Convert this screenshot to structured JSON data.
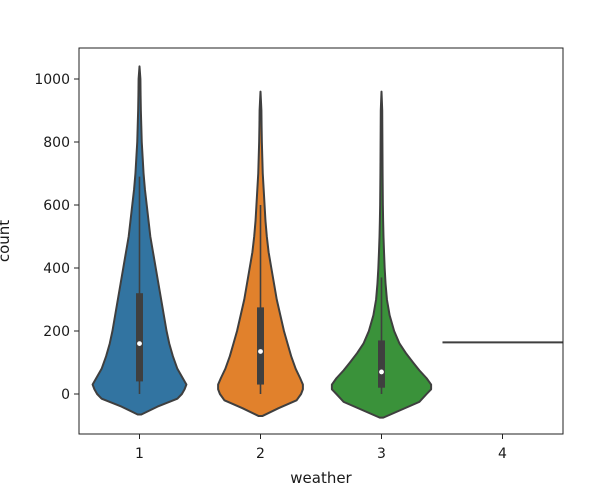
{
  "chart_data": {
    "type": "violin",
    "title": "",
    "xlabel": "weather",
    "ylabel": "count",
    "categories": [
      "1",
      "2",
      "3",
      "4"
    ],
    "ylim": [
      -130,
      1100
    ],
    "yticks": [
      0,
      200,
      400,
      600,
      800,
      1000
    ],
    "grid": false,
    "legend": "none",
    "colors": [
      "#3274a1",
      "#e1812c",
      "#3a923a",
      "#c03d3e"
    ],
    "violins": [
      {
        "category": "1",
        "min": -65,
        "max": 1040,
        "q1": 40,
        "median": 160,
        "q3": 320,
        "whisker_low": 0,
        "whisker_high": 690,
        "profile": [
          [
            -65,
            0.02
          ],
          [
            -40,
            0.2
          ],
          [
            -15,
            0.42
          ],
          [
            0,
            0.47
          ],
          [
            15,
            0.5
          ],
          [
            30,
            0.52
          ],
          [
            50,
            0.48
          ],
          [
            80,
            0.42
          ],
          [
            120,
            0.37
          ],
          [
            160,
            0.33
          ],
          [
            200,
            0.3
          ],
          [
            250,
            0.27
          ],
          [
            300,
            0.24
          ],
          [
            350,
            0.21
          ],
          [
            400,
            0.18
          ],
          [
            450,
            0.15
          ],
          [
            500,
            0.12
          ],
          [
            550,
            0.1
          ],
          [
            600,
            0.08
          ],
          [
            650,
            0.06
          ],
          [
            700,
            0.045
          ],
          [
            750,
            0.035
          ],
          [
            800,
            0.025
          ],
          [
            850,
            0.02
          ],
          [
            900,
            0.015
          ],
          [
            950,
            0.012
          ],
          [
            1000,
            0.01
          ],
          [
            1040,
            0.0
          ]
        ]
      },
      {
        "category": "2",
        "min": -70,
        "max": 960,
        "q1": 30,
        "median": 135,
        "q3": 275,
        "whisker_low": 0,
        "whisker_high": 600,
        "profile": [
          [
            -70,
            0.02
          ],
          [
            -45,
            0.2
          ],
          [
            -20,
            0.4
          ],
          [
            0,
            0.45
          ],
          [
            15,
            0.47
          ],
          [
            30,
            0.47
          ],
          [
            50,
            0.44
          ],
          [
            80,
            0.39
          ],
          [
            120,
            0.34
          ],
          [
            160,
            0.3
          ],
          [
            200,
            0.26
          ],
          [
            250,
            0.22
          ],
          [
            300,
            0.18
          ],
          [
            350,
            0.15
          ],
          [
            400,
            0.12
          ],
          [
            450,
            0.09
          ],
          [
            500,
            0.07
          ],
          [
            550,
            0.055
          ],
          [
            600,
            0.045
          ],
          [
            650,
            0.035
          ],
          [
            700,
            0.025
          ],
          [
            750,
            0.02
          ],
          [
            800,
            0.015
          ],
          [
            850,
            0.012
          ],
          [
            900,
            0.01
          ],
          [
            960,
            0.0
          ]
        ]
      },
      {
        "category": "3",
        "min": -75,
        "max": 960,
        "q1": 20,
        "median": 70,
        "q3": 170,
        "whisker_low": 0,
        "whisker_high": 370,
        "profile": [
          [
            -75,
            0.02
          ],
          [
            -50,
            0.22
          ],
          [
            -25,
            0.42
          ],
          [
            0,
            0.5
          ],
          [
            15,
            0.55
          ],
          [
            30,
            0.55
          ],
          [
            50,
            0.5
          ],
          [
            75,
            0.42
          ],
          [
            100,
            0.35
          ],
          [
            130,
            0.27
          ],
          [
            160,
            0.2
          ],
          [
            200,
            0.14
          ],
          [
            250,
            0.09
          ],
          [
            300,
            0.06
          ],
          [
            350,
            0.045
          ],
          [
            400,
            0.035
          ],
          [
            450,
            0.028
          ],
          [
            500,
            0.022
          ],
          [
            550,
            0.018
          ],
          [
            600,
            0.015
          ],
          [
            700,
            0.012
          ],
          [
            800,
            0.01
          ],
          [
            900,
            0.008
          ],
          [
            960,
            0.0
          ]
        ]
      },
      {
        "category": "4",
        "single_value": 164
      }
    ]
  }
}
